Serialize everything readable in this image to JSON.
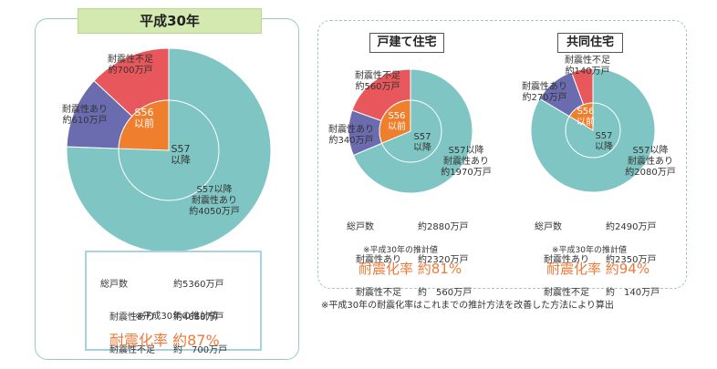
{
  "colors": {
    "teal": "#7fc5c3",
    "purple": "#6b6bb0",
    "red": "#e8575c",
    "orange": "#ef7e2d",
    "accent": "#ec7b3b"
  },
  "chart_data": [
    {
      "type": "pie",
      "title": "平成30年",
      "slices": [
        {
          "label": "S57以降 耐震性あり",
          "value": 4050,
          "unit": "万戸"
        },
        {
          "label": "耐震性あり",
          "value": 610,
          "unit": "万戸"
        },
        {
          "label": "耐震性不足",
          "value": 700,
          "unit": "万戸"
        }
      ],
      "inner": [
        {
          "label": "S56以前",
          "value": 1310
        },
        {
          "label": "S57以降",
          "value": 4050
        }
      ]
    },
    {
      "type": "pie",
      "title": "戸建て住宅",
      "slices": [
        {
          "label": "S57以降 耐震性あり",
          "value": 1970,
          "unit": "万戸"
        },
        {
          "label": "耐震性あり",
          "value": 340,
          "unit": "万戸"
        },
        {
          "label": "耐震性不足",
          "value": 560,
          "unit": "万戸"
        }
      ]
    },
    {
      "type": "pie",
      "title": "共同住宅",
      "slices": [
        {
          "label": "S57以降 耐震性あり",
          "value": 2080,
          "unit": "万戸"
        },
        {
          "label": "耐震性あり",
          "value": 270,
          "unit": "万戸"
        },
        {
          "label": "耐震性不足",
          "value": 140,
          "unit": "万戸"
        }
      ]
    }
  ],
  "left": {
    "title": "平成30年",
    "lbl_fusoku_1": "耐震性不足",
    "lbl_fusoku_2": "約700万戸",
    "lbl_ari_1": "耐震性あり",
    "lbl_ari_2": "約610万戸",
    "lbl_s56_1": "S56",
    "lbl_s56_2": "以前",
    "lbl_s57_1": "S57",
    "lbl_s57_2": "以降",
    "lbl_big_1": "S57以降",
    "lbl_big_2": "耐震性あり",
    "lbl_big_3": "約4050万戸",
    "stats": [
      {
        "k": "総戸数",
        "v": "約5360万戸"
      },
      {
        "k": "　耐震性あり",
        "v": "約4660万戸"
      },
      {
        "k": "　耐震性不足",
        "v": "約　700万戸"
      }
    ],
    "note": "※平成30年の推計値",
    "rate": "耐震化率 約87%"
  },
  "detached": {
    "title": "戸建て住宅",
    "lbl_fusoku_1": "耐震性不足",
    "lbl_fusoku_2": "約560万戸",
    "lbl_ari_1": "耐震性あり",
    "lbl_ari_2": "約340万戸",
    "lbl_s56_1": "S56",
    "lbl_s56_2": "以前",
    "lbl_s57_1": "S57",
    "lbl_s57_2": "以降",
    "lbl_big_1": "S57以降",
    "lbl_big_2": "耐震性あり",
    "lbl_big_3": "約1970万戸",
    "stats": [
      {
        "k": "総戸数",
        "v": "約2880万戸"
      },
      {
        "k": "　耐震性あり",
        "v": "約2320万戸"
      },
      {
        "k": "　耐震性不足",
        "v": "約　560万戸"
      }
    ],
    "note": "※平成30年の推計値",
    "rate": "耐震化率 約81%"
  },
  "apartment": {
    "title": "共同住宅",
    "lbl_fusoku_1": "耐震性不足",
    "lbl_fusoku_2": "約140万戸",
    "lbl_ari_1": "耐震性あり",
    "lbl_ari_2": "約270万戸",
    "lbl_s56_1": "S56",
    "lbl_s56_2": "以前",
    "lbl_s57_1": "S57",
    "lbl_s57_2": "以降",
    "lbl_big_1": "S57以降",
    "lbl_big_2": "耐震性あり",
    "lbl_big_3": "約2080万戸",
    "stats": [
      {
        "k": "総戸数",
        "v": "約2490万戸"
      },
      {
        "k": "　耐震性あり",
        "v": "約2350万戸"
      },
      {
        "k": "　耐震性不足",
        "v": "約　140万戸"
      }
    ],
    "note": "※平成30年の推計値",
    "rate": "耐震化率 約94%"
  },
  "footnote": "※平成30年の耐震化率はこれまでの推計方法を改善した方法により算出"
}
